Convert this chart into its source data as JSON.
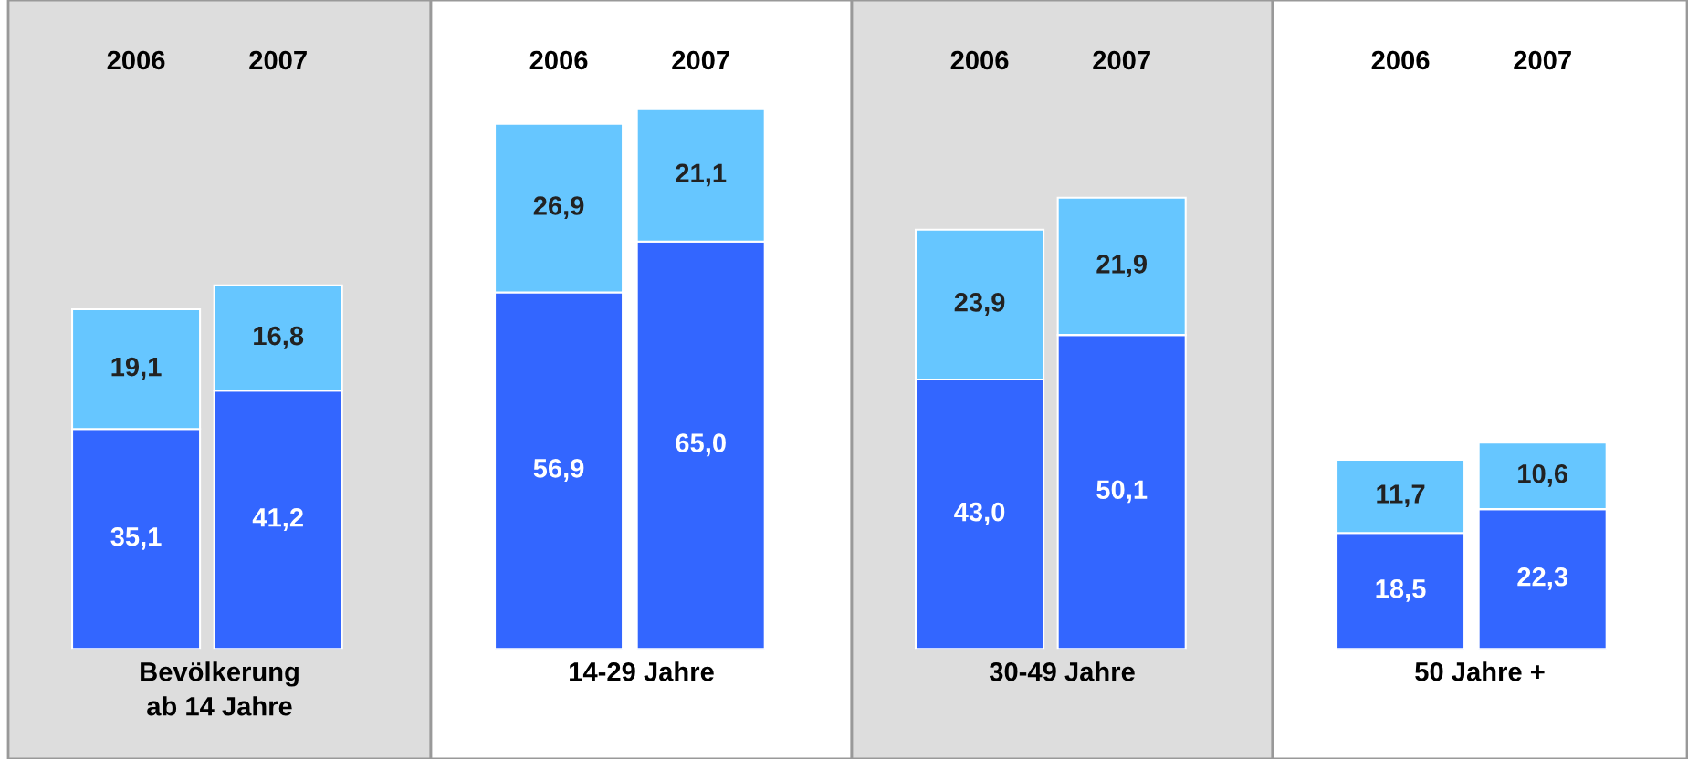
{
  "chart_data": [
    {
      "type": "bar",
      "stacked": true,
      "categories": [
        "2006",
        "2007"
      ],
      "xlabel": "Bevölkerung\nab 14 Jahre",
      "tick_labels": "x",
      "grid": false,
      "legend": false,
      "series": [
        {
          "color": "#3366ff",
          "values": [
            35.1,
            41.2
          ],
          "value_labels": [
            "35,1",
            "41,2"
          ]
        },
        {
          "color": "#66c6ff",
          "values": [
            19.1,
            16.8
          ],
          "value_labels": [
            "19,1",
            "16,8"
          ]
        }
      ]
    },
    {
      "type": "bar",
      "stacked": true,
      "categories": [
        "2006",
        "2007"
      ],
      "xlabel": "14-29 Jahre",
      "tick_labels": "x",
      "grid": false,
      "legend": false,
      "series": [
        {
          "color": "#3366ff",
          "values": [
            56.9,
            65.0
          ],
          "value_labels": [
            "56,9",
            "65,0"
          ]
        },
        {
          "color": "#66c6ff",
          "values": [
            26.9,
            21.1
          ],
          "value_labels": [
            "26,9",
            "21,1"
          ]
        }
      ]
    },
    {
      "type": "bar",
      "stacked": true,
      "categories": [
        "2006",
        "2007"
      ],
      "xlabel": "30-49 Jahre",
      "tick_labels": "x",
      "grid": false,
      "legend": false,
      "series": [
        {
          "color": "#3366ff",
          "values": [
            43.0,
            50.1
          ],
          "value_labels": [
            "43,0",
            "50,1"
          ]
        },
        {
          "color": "#66c6ff",
          "values": [
            23.9,
            21.9
          ],
          "value_labels": [
            "23,9",
            "21,9"
          ]
        }
      ]
    },
    {
      "type": "bar",
      "stacked": true,
      "categories": [
        "2006",
        "2007"
      ],
      "xlabel": "50 Jahre +",
      "tick_labels": "x",
      "grid": false,
      "legend": false,
      "series": [
        {
          "color": "#3366ff",
          "values": [
            18.5,
            22.3
          ],
          "value_labels": [
            "18,5",
            "22,3"
          ]
        },
        {
          "color": "#66c6ff",
          "values": [
            11.7,
            10.6
          ],
          "value_labels": [
            "11,7",
            "10,6"
          ]
        }
      ]
    }
  ]
}
